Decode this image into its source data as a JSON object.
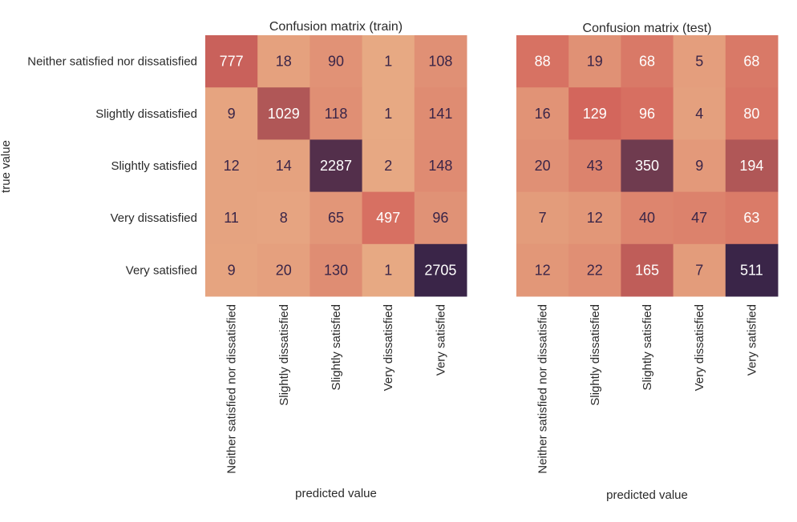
{
  "chart_data": [
    {
      "type": "heatmap",
      "title": "Confusion matrix (train)",
      "xlabel": "predicted value",
      "ylabel": "true value",
      "x_categories": [
        "Neither satisfied nor dissatisfied",
        "Slightly dissatisfied",
        "Slightly satisfied",
        "Very dissatisfied",
        "Very satisfied"
      ],
      "y_categories": [
        "Neither satisfied nor dissatisfied",
        "Slightly dissatisfied",
        "Slightly satisfied",
        "Very dissatisfied",
        "Very satisfied"
      ],
      "values": [
        [
          777,
          18,
          90,
          1,
          108
        ],
        [
          9,
          1029,
          118,
          1,
          141
        ],
        [
          12,
          14,
          2287,
          2,
          148
        ],
        [
          11,
          8,
          65,
          497,
          96
        ],
        [
          9,
          20,
          130,
          1,
          2705
        ]
      ],
      "colorbar": false
    },
    {
      "type": "heatmap",
      "title": "Confusion matrix (test)",
      "xlabel": "predicted value",
      "x_categories": [
        "Neither satisfied nor dissatisfied",
        "Slightly dissatisfied",
        "Slightly satisfied",
        "Very dissatisfied",
        "Very satisfied"
      ],
      "values": [
        [
          88,
          19,
          68,
          5,
          68
        ],
        [
          16,
          129,
          96,
          4,
          80
        ],
        [
          20,
          43,
          350,
          9,
          194
        ],
        [
          7,
          12,
          40,
          47,
          63
        ],
        [
          12,
          22,
          165,
          7,
          511
        ]
      ],
      "colorbar": false
    }
  ],
  "colors": {
    "low": "#e8ac85",
    "mid": "#d4665c",
    "high": "#3a2548",
    "text_dark": "#3a2548",
    "text_light": "#ffffff"
  }
}
